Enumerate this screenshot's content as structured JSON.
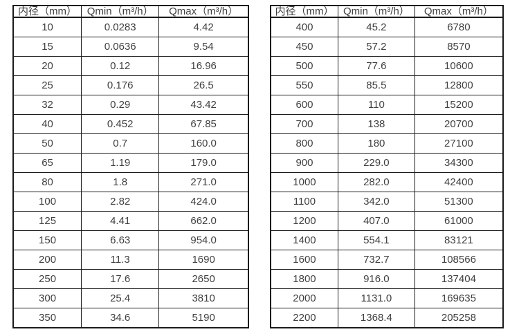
{
  "colors": {
    "background": "#ffffff",
    "border": "#1a1a1a",
    "text": "#404040"
  },
  "chart_data": [
    {
      "type": "table",
      "columns": [
        "内径（mm）",
        "Qmin（m³/h）",
        "Qmax（m³/h）"
      ],
      "rows": [
        [
          "10",
          "0.0283",
          "4.42"
        ],
        [
          "15",
          "0.0636",
          "9.54"
        ],
        [
          "20",
          "0.12",
          "16.96"
        ],
        [
          "25",
          "0.176",
          "26.5"
        ],
        [
          "32",
          "0.29",
          "43.42"
        ],
        [
          "40",
          "0.452",
          "67.85"
        ],
        [
          "50",
          "0.7",
          "160.0"
        ],
        [
          "65",
          "1.19",
          "179.0"
        ],
        [
          "80",
          "1.8",
          "271.0"
        ],
        [
          "100",
          "2.82",
          "424.0"
        ],
        [
          "125",
          "4.41",
          "662.0"
        ],
        [
          "150",
          "6.63",
          "954.0"
        ],
        [
          "200",
          "11.3",
          "1690"
        ],
        [
          "250",
          "17.6",
          "2650"
        ],
        [
          "300",
          "25.4",
          "3810"
        ],
        [
          "350",
          "34.6",
          "5190"
        ]
      ]
    },
    {
      "type": "table",
      "columns": [
        "内径（mm）",
        "Qmin（m³/h）",
        "Qmax（m³/h）"
      ],
      "rows": [
        [
          "400",
          "45.2",
          "6780"
        ],
        [
          "450",
          "57.2",
          "8570"
        ],
        [
          "500",
          "77.6",
          "10600"
        ],
        [
          "550",
          "85.5",
          "12800"
        ],
        [
          "600",
          "110",
          "15200"
        ],
        [
          "700",
          "138",
          "20700"
        ],
        [
          "800",
          "180",
          "27100"
        ],
        [
          "900",
          "229.0",
          "34300"
        ],
        [
          "1000",
          "282.0",
          "42400"
        ],
        [
          "1100",
          "342.0",
          "51300"
        ],
        [
          "1200",
          "407.0",
          "61000"
        ],
        [
          "1400",
          "554.1",
          "83121"
        ],
        [
          "1600",
          "732.7",
          "108566"
        ],
        [
          "1800",
          "916.0",
          "137404"
        ],
        [
          "2000",
          "1131.0",
          "169635"
        ],
        [
          "2200",
          "1368.4",
          "205258"
        ]
      ]
    }
  ]
}
